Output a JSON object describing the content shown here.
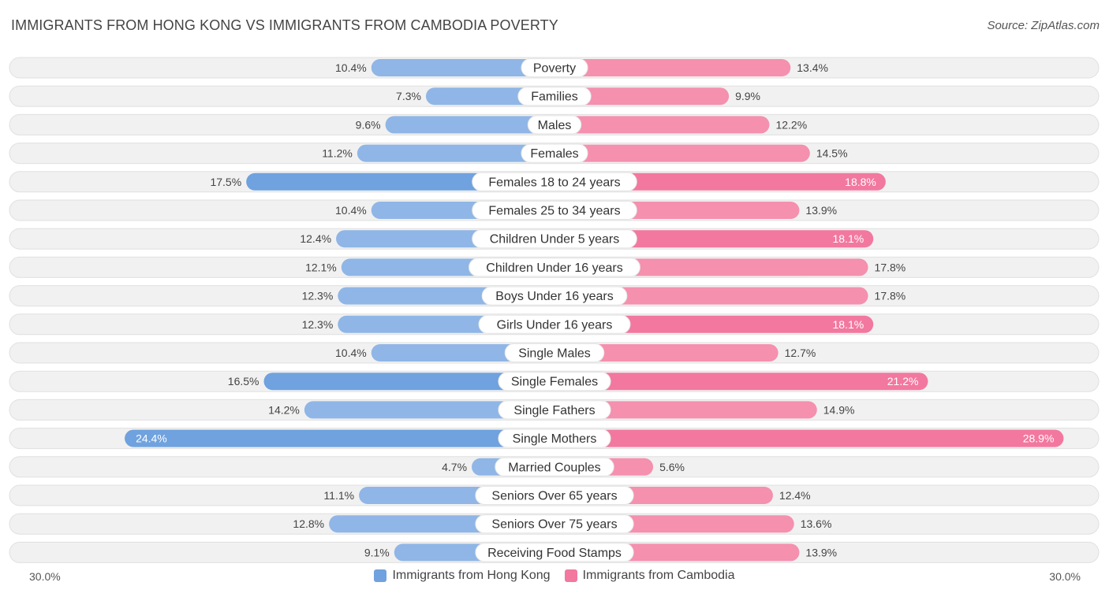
{
  "title": "IMMIGRANTS FROM HONG KONG VS IMMIGRANTS FROM CAMBODIA POVERTY",
  "source": "Source: ZipAtlas.com",
  "colors": {
    "left_bar": "#8fb6e6",
    "left_bar_strong": "#6fa2de",
    "right_bar": "#f590af",
    "right_bar_strong": "#f2789f",
    "track": "#f1f1f1",
    "track_border": "#e0e0e0"
  },
  "chart_data": {
    "type": "bar",
    "orientation": "horizontal-diverging",
    "axis_max": 30.0,
    "axis_left_label": "30.0%",
    "axis_right_label": "30.0%",
    "categories": [
      "Poverty",
      "Families",
      "Males",
      "Females",
      "Females 18 to 24 years",
      "Females 25 to 34 years",
      "Children Under 5 years",
      "Children Under 16 years",
      "Boys Under 16 years",
      "Girls Under 16 years",
      "Single Males",
      "Single Females",
      "Single Fathers",
      "Single Mothers",
      "Married Couples",
      "Seniors Over 65 years",
      "Seniors Over 75 years",
      "Receiving Food Stamps"
    ],
    "series": [
      {
        "name": "Immigrants from Hong Kong",
        "values": [
          10.4,
          7.3,
          9.6,
          11.2,
          17.5,
          10.4,
          12.4,
          12.1,
          12.3,
          12.3,
          10.4,
          16.5,
          14.2,
          24.4,
          4.7,
          11.1,
          12.8,
          9.1
        ],
        "labels": [
          "10.4%",
          "7.3%",
          "9.6%",
          "11.2%",
          "17.5%",
          "10.4%",
          "12.4%",
          "12.1%",
          "12.3%",
          "12.3%",
          "10.4%",
          "16.5%",
          "14.2%",
          "24.4%",
          "4.7%",
          "11.1%",
          "12.8%",
          "9.1%"
        ]
      },
      {
        "name": "Immigrants from Cambodia",
        "values": [
          13.4,
          9.9,
          12.2,
          14.5,
          18.8,
          13.9,
          18.1,
          17.8,
          17.8,
          18.1,
          12.7,
          21.2,
          14.9,
          28.9,
          5.6,
          12.4,
          13.6,
          13.9
        ],
        "labels": [
          "13.4%",
          "9.9%",
          "12.2%",
          "14.5%",
          "18.8%",
          "13.9%",
          "18.1%",
          "17.8%",
          "17.8%",
          "18.1%",
          "12.7%",
          "21.2%",
          "14.9%",
          "28.9%",
          "5.6%",
          "12.4%",
          "13.6%",
          "13.9%"
        ]
      }
    ]
  },
  "legend": {
    "left": "Immigrants from Hong Kong",
    "right": "Immigrants from Cambodia"
  }
}
